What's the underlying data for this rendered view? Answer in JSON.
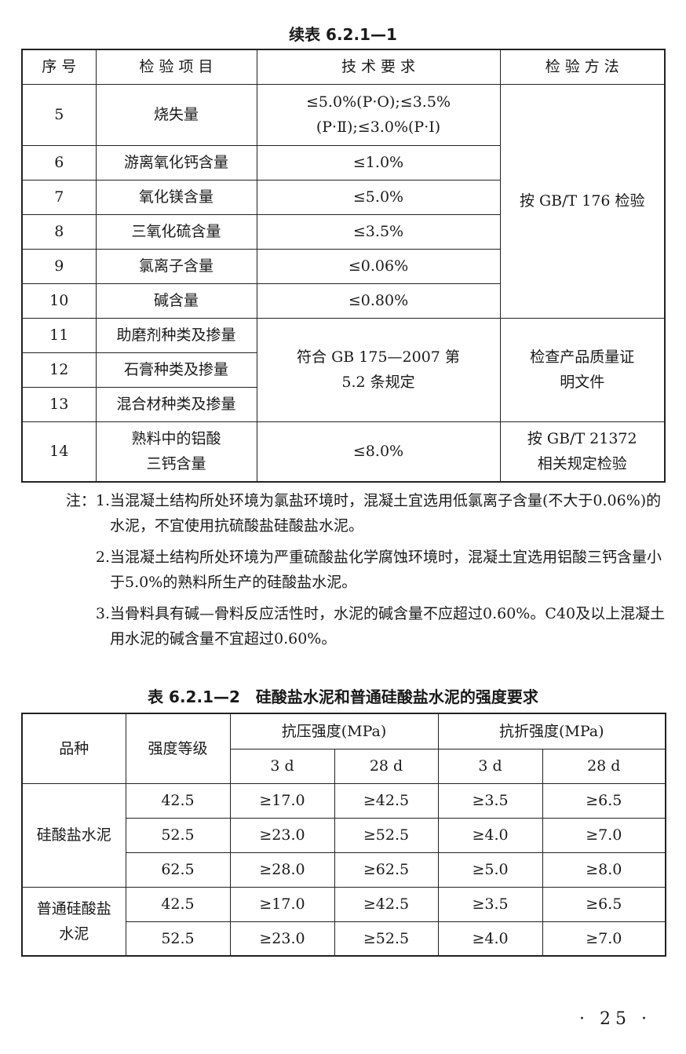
{
  "table1": {
    "caption": "续表 6.2.1—1",
    "headers": [
      "序 号",
      "检 验 项 目",
      "技 术 要 求",
      "检 验 方 法"
    ],
    "rows": [
      {
        "no": "5",
        "item": "烧失量",
        "req": "≤5.0%(P·O);≤3.5%(P·Ⅱ);≤3.0%(P·Ⅰ)"
      },
      {
        "no": "6",
        "item": "游离氧化钙含量",
        "req": "≤1.0%"
      },
      {
        "no": "7",
        "item": "氧化镁含量",
        "req": "≤5.0%"
      },
      {
        "no": "8",
        "item": "三氧化硫含量",
        "req": "≤3.5%"
      },
      {
        "no": "9",
        "item": "氯离子含量",
        "req": "≤0.06%"
      },
      {
        "no": "10",
        "item": "碱含量",
        "req": "≤0.80%"
      },
      {
        "no": "11",
        "item": "助磨剂种类及掺量"
      },
      {
        "no": "12",
        "item": "石膏种类及掺量"
      },
      {
        "no": "13",
        "item": "混合材种类及掺量"
      },
      {
        "no": "14",
        "item": "熟料中的铝酸三钙含量",
        "req": "≤8.0%",
        "method": "按 GB/T 21372 相关规定检验"
      }
    ],
    "method_5_10": "按 GB/T 176 检验",
    "req_11_13": "符合 GB 175—2007 第 5.2 条规定",
    "method_11_13": "检查产品质量证明文件"
  },
  "notes": [
    {
      "label": "注：1.",
      "text": "当混凝土结构所处环境为氯盐环境时，混凝土宜选用低氯离子含量(不大于0.06%)的水泥，不宜使用抗硫酸盐硅酸盐水泥。"
    },
    {
      "label": "2.",
      "text": "当混凝土结构所处环境为严重硫酸盐化学腐蚀环境时，混凝土宜选用铝酸三钙含量小于5.0%的熟料所生产的硅酸盐水泥。"
    },
    {
      "label": "3.",
      "text": "当骨料具有碱—骨料反应活性时，水泥的碱含量不应超过0.60%。C40及以上混凝土用水泥的碱含量不宜超过0.60%。"
    }
  ],
  "table2": {
    "caption": "表 6.2.1—2　硅酸盐水泥和普通硅酸盐水泥的强度要求",
    "headers": {
      "variety": "品种",
      "grade": "强度等级",
      "compressive": "抗压强度(MPa)",
      "flexural": "抗折强度(MPa)",
      "d3": "3 d",
      "d28": "28 d"
    },
    "groups": [
      {
        "name": "硅酸盐水泥",
        "rows": [
          [
            "42.5",
            "≥17.0",
            "≥42.5",
            "≥3.5",
            "≥6.5"
          ],
          [
            "52.5",
            "≥23.0",
            "≥52.5",
            "≥4.0",
            "≥7.0"
          ],
          [
            "62.5",
            "≥28.0",
            "≥62.5",
            "≥5.0",
            "≥8.0"
          ]
        ]
      },
      {
        "name": "普通硅酸盐水泥",
        "rows": [
          [
            "42.5",
            "≥17.0",
            "≥42.5",
            "≥3.5",
            "≥6.5"
          ],
          [
            "52.5",
            "≥23.0",
            "≥52.5",
            "≥4.0",
            "≥7.0"
          ]
        ]
      }
    ]
  },
  "page_number": "· 25 ·"
}
